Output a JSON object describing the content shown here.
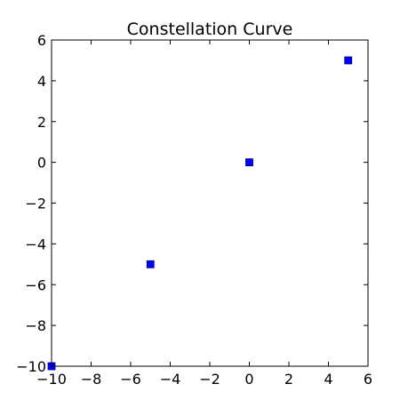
{
  "chart_data": {
    "type": "scatter",
    "title": "Constellation Curve",
    "xlabel": "",
    "ylabel": "",
    "xlim": [
      -10,
      6
    ],
    "ylim": [
      -10,
      6
    ],
    "xticks": [
      -10,
      -8,
      -6,
      -4,
      -2,
      0,
      2,
      4,
      6
    ],
    "yticks": [
      -10,
      -8,
      -6,
      -4,
      -2,
      0,
      2,
      4,
      6
    ],
    "xtick_labels": [
      "−10",
      "−8",
      "−6",
      "−4",
      "−2",
      "0",
      "2",
      "4",
      "6"
    ],
    "ytick_labels": [
      "−10",
      "−8",
      "−6",
      "−4",
      "−2",
      "0",
      "2",
      "4",
      "6"
    ],
    "grid": false,
    "legend": "none",
    "series": [
      {
        "marker": "square",
        "color": "#0000ff",
        "x": [
          -10,
          -5,
          0,
          5
        ],
        "y": [
          -10,
          -5,
          0,
          5
        ]
      }
    ]
  }
}
